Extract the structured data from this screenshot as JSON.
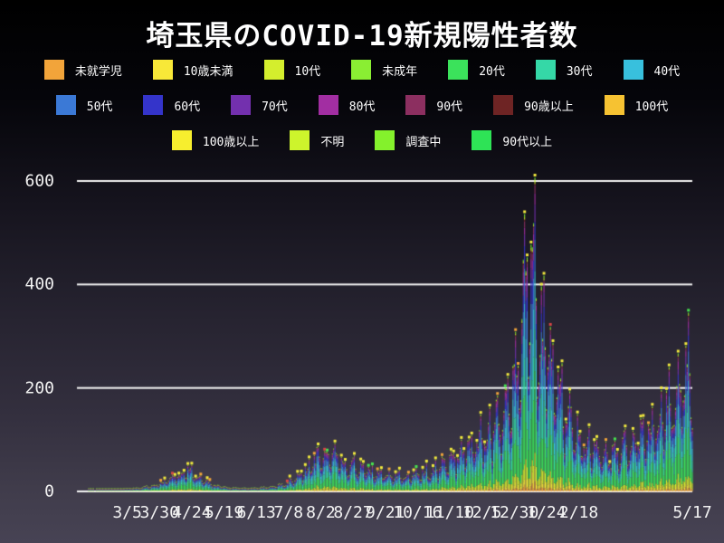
{
  "chart_data": {
    "type": "bar",
    "subtype": "stacked-daily-bars",
    "title": "埼玉県のCOVID-19新規陽性者数",
    "stacked": true,
    "legend_position": "top",
    "grid": true,
    "grid_color": "#f5f5f5",
    "text_color": "#ffffff",
    "background_top": "#000000",
    "background_bottom": "#474354",
    "ylim": [
      0,
      620
    ],
    "y_ticks": [
      0,
      200,
      400,
      600
    ],
    "y_max_value": 607,
    "x_tick_labels": [
      "3/5",
      "3/30",
      "4/24",
      "5/19",
      "6/13",
      "7/8",
      "8/2",
      "8/27",
      "9/21",
      "10/16",
      "11/10",
      "12/5",
      "12/30",
      "1/24",
      "2/18",
      "5/17"
    ],
    "x_tick_days": [
      39,
      64,
      89,
      114,
      139,
      164,
      189,
      214,
      239,
      264,
      289,
      314,
      339,
      364,
      389,
      477
    ],
    "days_total": 478,
    "envelope": [
      [
        0,
        0
      ],
      [
        15,
        1
      ],
      [
        30,
        2
      ],
      [
        39,
        3
      ],
      [
        50,
        6
      ],
      [
        62,
        14
      ],
      [
        72,
        30
      ],
      [
        80,
        45
      ],
      [
        86,
        55
      ],
      [
        92,
        42
      ],
      [
        99,
        24
      ],
      [
        108,
        12
      ],
      [
        118,
        6
      ],
      [
        132,
        4
      ],
      [
        146,
        7
      ],
      [
        158,
        14
      ],
      [
        168,
        28
      ],
      [
        178,
        55
      ],
      [
        188,
        90
      ],
      [
        196,
        105
      ],
      [
        204,
        85
      ],
      [
        214,
        62
      ],
      [
        226,
        50
      ],
      [
        240,
        42
      ],
      [
        254,
        38
      ],
      [
        266,
        44
      ],
      [
        278,
        54
      ],
      [
        288,
        75
      ],
      [
        298,
        100
      ],
      [
        308,
        118
      ],
      [
        318,
        145
      ],
      [
        328,
        185
      ],
      [
        336,
        235
      ],
      [
        342,
        320
      ],
      [
        346,
        470
      ],
      [
        349,
        600
      ],
      [
        352,
        510
      ],
      [
        355,
        545
      ],
      [
        359,
        420
      ],
      [
        364,
        350
      ],
      [
        371,
        270
      ],
      [
        378,
        205
      ],
      [
        385,
        160
      ],
      [
        391,
        128
      ],
      [
        399,
        108
      ],
      [
        408,
        96
      ],
      [
        418,
        98
      ],
      [
        428,
        115
      ],
      [
        438,
        145
      ],
      [
        448,
        172
      ],
      [
        456,
        205
      ],
      [
        463,
        238
      ],
      [
        468,
        275
      ],
      [
        472,
        310
      ],
      [
        475,
        320
      ],
      [
        477,
        265
      ]
    ],
    "weekly_pattern": [
      0.52,
      0.66,
      0.88,
      0.97,
      1.02,
      1.06,
      0.74
    ],
    "series": [
      {
        "name": "未就学児",
        "color": "#f2a43a",
        "fraction": 0.02
      },
      {
        "name": "10歳未満",
        "color": "#f8e838",
        "fraction": 0.03
      },
      {
        "name": "10代",
        "color": "#d4ee2d",
        "fraction": 0.06
      },
      {
        "name": "未成年",
        "color": "#8aee33",
        "fraction": 0.003
      },
      {
        "name": "20代",
        "color": "#3be25b",
        "fraction": 0.235
      },
      {
        "name": "30代",
        "color": "#35d8a7",
        "fraction": 0.165
      },
      {
        "name": "40代",
        "color": "#38c0dd",
        "fraction": 0.15
      },
      {
        "name": "50代",
        "color": "#3b79d6",
        "fraction": 0.13
      },
      {
        "name": "60代",
        "color": "#3434ca",
        "fraction": 0.07
      },
      {
        "name": "70代",
        "color": "#7330ae",
        "fraction": 0.05
      },
      {
        "name": "80代",
        "color": "#a22ea2",
        "fraction": 0.04
      },
      {
        "name": "90代",
        "color": "#8c2f60",
        "fraction": 0.022
      },
      {
        "name": "90歳以上",
        "color": "#6e2424",
        "fraction": 0.005
      },
      {
        "name": "100代",
        "color": "#f6c232",
        "fraction": 0.001
      },
      {
        "name": "100歳以上",
        "color": "#f7ee2e",
        "fraction": 0.001
      },
      {
        "name": "不明",
        "color": "#cdf42c",
        "fraction": 0.008
      },
      {
        "name": "調査中",
        "color": "#84f12c",
        "fraction": 0.008
      },
      {
        "name": "90代以上",
        "color": "#2ee356",
        "fraction": 0.002
      }
    ],
    "legend_rows": [
      [
        0,
        1,
        2,
        3,
        4,
        5,
        6
      ],
      [
        7,
        8,
        9,
        10,
        11,
        12,
        13
      ],
      [
        14,
        15,
        16,
        17
      ]
    ],
    "markers": {
      "size": 3,
      "colors": [
        "#f3ea3e",
        "#f2a43a",
        "#46e34f",
        "#d84545"
      ]
    }
  }
}
